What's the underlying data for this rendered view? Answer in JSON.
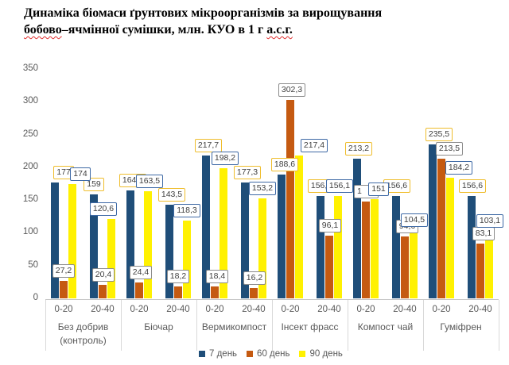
{
  "title": {
    "line1": "Динаміка біомаси ґрунтових мікроорганізмів за вирощування",
    "line2_word1": "бобово",
    "line2_mid": "–ячмінної сумішки, млн. КУО в 1 г ",
    "line2_word2": "а.с.г."
  },
  "chart_data": {
    "type": "bar",
    "title": "Динаміка біомаси ґрунтових мікроорганізмів за вирощування бобово–ячмінної сумішки, млн. КУО в 1 г а.с.г.",
    "ylabel": "",
    "xlabel": "",
    "ylim": [
      0,
      350
    ],
    "yticks": [
      0,
      50,
      100,
      150,
      200,
      250,
      300,
      350
    ],
    "grid": false,
    "legend_position": "bottom",
    "depth_axis_note": "two soil depths per group",
    "series": [
      {
        "name": "7 день",
        "color": "#1F4E79",
        "label_border": "#EFBD2C"
      },
      {
        "name": "60 день",
        "color": "#C55A11",
        "label_border": "#8C8C8C"
      },
      {
        "name": "90 день",
        "color": "#FFF101",
        "label_border": "#3E69A5"
      }
    ],
    "groups": [
      {
        "name": "Без добрив (контроль)",
        "name_lines": [
          "Без добрив",
          "(контроль)"
        ],
        "subgroups": [
          {
            "depth": "0-20",
            "values": [
              177,
              27.2,
              174
            ],
            "labels": [
              "177",
              "27,2",
              "174"
            ],
            "dx": [
              0,
              0,
              21
            ]
          },
          {
            "depth": "20-40",
            "values": [
              159,
              20.4,
              120.6
            ],
            "labels": [
              "159",
              "20,4",
              "120,6"
            ],
            "dx": [
              -11,
              1,
              1
            ]
          }
        ]
      },
      {
        "name": "Біочар",
        "name_lines": [
          "Біочар"
        ],
        "subgroups": [
          {
            "depth": "0-20",
            "values": [
              164.5,
              24.4,
              163.5
            ],
            "labels": [
              "164,5",
              "24,4",
              "163,5"
            ],
            "dx": [
              -8,
              2,
              13
            ]
          },
          {
            "depth": "20-40",
            "values": [
              143.5,
              18.2,
              118.3
            ],
            "labels": [
              "143,5",
              "18,2",
              "118,3"
            ],
            "dx": [
              -8,
              0,
              11
            ]
          }
        ]
      },
      {
        "name": "Вермикомпост",
        "name_lines": [
          "Вермикомпост"
        ],
        "subgroups": [
          {
            "depth": "0-20",
            "values": [
              217.7,
              18.4,
              198.2
            ],
            "labels": [
              "217,7",
              "18,4",
              "198,2"
            ],
            "dx": [
              -8,
              3,
              13
            ]
          },
          {
            "depth": "20-40",
            "values": [
              177.3,
              16.2,
              153.2
            ],
            "labels": [
              "177,3",
              "16,2",
              "153,2"
            ],
            "dx": [
              -8,
              1,
              11
            ]
          }
        ]
      },
      {
        "name": "Інсект фрасс",
        "name_lines": [
          "Інсект фрасс"
        ],
        "subgroups": [
          {
            "depth": "0-20",
            "values": [
              188.6,
              302.3,
              217.4
            ],
            "labels": [
              "188,6",
              "302,3",
              "217,4"
            ],
            "dx": [
              -7,
              2,
              30
            ]
          },
          {
            "depth": "20-40",
            "values": [
              156.6,
              96.1,
              156.1
            ],
            "labels": [
              "156,6",
              "96,1",
              "156,1"
            ],
            "dx": [
              -10,
              1,
              13
            ]
          }
        ]
      },
      {
        "name": "Компост чай",
        "name_lines": [
          "Компост чай"
        ],
        "subgroups": [
          {
            "depth": "0-20",
            "values": [
              213.2,
              148,
              151
            ],
            "labels": [
              "213,2",
              "1",
              "151"
            ],
            "dx": [
              -9,
              0,
              16
            ],
            "occluded": [
              false,
              true,
              false
            ],
            "note": "orange 60-день label is mostly hidden behind the 151 label; only leading 1 visible, bar height ≈148"
          },
          {
            "depth": "20-40",
            "values": [
              156.6,
              94.6,
              104.5
            ],
            "labels": [
              "156,6",
              "94,6",
              "104,5"
            ],
            "dx": [
              -10,
              3,
              12
            ]
          }
        ]
      },
      {
        "name": "Гуміфрен",
        "name_lines": [
          "Гуміфрен"
        ],
        "subgroups": [
          {
            "depth": "0-20",
            "values": [
              235.5,
              213.5,
              184.2
            ],
            "labels": [
              "235,5",
              "213,5",
              "184,2"
            ],
            "dx": [
              -3,
              10,
              22
            ]
          },
          {
            "depth": "20-40",
            "values": [
              156.6,
              83.1,
              103.1
            ],
            "labels": [
              "156,6",
              "83,1",
              "103,1"
            ],
            "dx": [
              -10,
              4,
              12
            ]
          }
        ]
      }
    ]
  }
}
